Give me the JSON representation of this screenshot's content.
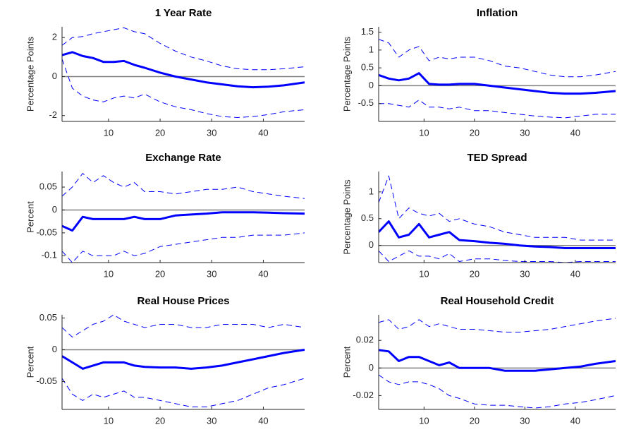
{
  "chart_data": [
    {
      "type": "line",
      "title": "1 Year Rate",
      "ylabel": "Percentage Points",
      "x": [
        1,
        3,
        5,
        7,
        9,
        11,
        13,
        15,
        17,
        20,
        23,
        26,
        29,
        32,
        35,
        38,
        41,
        44,
        48
      ],
      "xlim": [
        1,
        48
      ],
      "xticks": [
        10,
        20,
        30,
        40
      ],
      "ylim": [
        -2.3,
        2.55
      ],
      "yticks": [
        -2,
        0,
        2
      ],
      "reference_line": 0,
      "series": [
        {
          "color": "#0000ff",
          "style": "solid",
          "values": [
            1.1,
            1.25,
            1.05,
            0.95,
            0.75,
            0.75,
            0.8,
            0.6,
            0.45,
            0.2,
            0.0,
            -0.15,
            -0.3,
            -0.4,
            -0.5,
            -0.55,
            -0.52,
            -0.45,
            -0.3
          ]
        },
        {
          "color": "#0000ff",
          "style": "dashed",
          "values": [
            1.6,
            2.0,
            2.05,
            2.2,
            2.3,
            2.4,
            2.5,
            2.3,
            2.2,
            1.7,
            1.3,
            1.0,
            0.8,
            0.55,
            0.4,
            0.35,
            0.35,
            0.4,
            0.5
          ]
        },
        {
          "color": "#0000ff",
          "style": "dashed",
          "values": [
            0.9,
            -0.6,
            -1.0,
            -1.2,
            -1.3,
            -1.1,
            -1.0,
            -1.1,
            -0.9,
            -1.3,
            -1.55,
            -1.7,
            -1.9,
            -2.05,
            -2.1,
            -2.05,
            -1.95,
            -1.8,
            -1.7
          ]
        }
      ]
    },
    {
      "type": "line",
      "title": "Inflation",
      "ylabel": "Percentage Points",
      "x": [
        1,
        3,
        5,
        7,
        9,
        11,
        13,
        15,
        17,
        20,
        23,
        26,
        29,
        32,
        35,
        38,
        41,
        44,
        48
      ],
      "xlim": [
        1,
        48
      ],
      "xticks": [
        10,
        20,
        30,
        40
      ],
      "ylim": [
        -1.0,
        1.65
      ],
      "yticks": [
        -0.5,
        0,
        0.5,
        1,
        1.5
      ],
      "reference_line": 0,
      "series": [
        {
          "color": "#0000ff",
          "style": "solid",
          "values": [
            0.3,
            0.2,
            0.15,
            0.2,
            0.35,
            0.05,
            0.03,
            0.03,
            0.05,
            0.05,
            0.0,
            -0.05,
            -0.1,
            -0.15,
            -0.2,
            -0.22,
            -0.22,
            -0.2,
            -0.15
          ]
        },
        {
          "color": "#0000ff",
          "style": "dashed",
          "values": [
            1.3,
            1.2,
            0.8,
            1.0,
            1.1,
            0.7,
            0.8,
            0.75,
            0.8,
            0.8,
            0.7,
            0.55,
            0.5,
            0.4,
            0.3,
            0.25,
            0.25,
            0.3,
            0.4
          ]
        },
        {
          "color": "#0000ff",
          "style": "dashed",
          "values": [
            -0.5,
            -0.5,
            -0.55,
            -0.6,
            -0.4,
            -0.6,
            -0.6,
            -0.65,
            -0.6,
            -0.7,
            -0.7,
            -0.75,
            -0.8,
            -0.85,
            -0.88,
            -0.9,
            -0.85,
            -0.8,
            -0.8
          ]
        }
      ]
    },
    {
      "type": "line",
      "title": "Exchange Rate",
      "ylabel": "Percent",
      "x": [
        1,
        3,
        5,
        7,
        9,
        11,
        13,
        15,
        17,
        20,
        23,
        26,
        29,
        32,
        35,
        38,
        41,
        44,
        48
      ],
      "xlim": [
        1,
        48
      ],
      "xticks": [
        10,
        20,
        30,
        40
      ],
      "ylim": [
        -0.115,
        0.084
      ],
      "yticks": [
        -0.1,
        -0.05,
        0,
        0.05
      ],
      "reference_line": 0,
      "series": [
        {
          "color": "#0000ff",
          "style": "solid",
          "values": [
            -0.035,
            -0.045,
            -0.015,
            -0.02,
            -0.02,
            -0.02,
            -0.02,
            -0.015,
            -0.02,
            -0.02,
            -0.012,
            -0.01,
            -0.008,
            -0.005,
            -0.005,
            -0.005,
            -0.006,
            -0.007,
            -0.008
          ]
        },
        {
          "color": "#0000ff",
          "style": "dashed",
          "values": [
            0.03,
            0.05,
            0.08,
            0.06,
            0.075,
            0.06,
            0.05,
            0.06,
            0.04,
            0.04,
            0.035,
            0.04,
            0.045,
            0.045,
            0.05,
            0.04,
            0.035,
            0.03,
            0.025
          ]
        },
        {
          "color": "#0000ff",
          "style": "dashed",
          "values": [
            -0.09,
            -0.115,
            -0.09,
            -0.1,
            -0.1,
            -0.1,
            -0.09,
            -0.1,
            -0.095,
            -0.08,
            -0.075,
            -0.07,
            -0.065,
            -0.06,
            -0.06,
            -0.055,
            -0.055,
            -0.055,
            -0.05
          ]
        }
      ]
    },
    {
      "type": "line",
      "title": "TED Spread",
      "ylabel": "Percentage Points",
      "x": [
        1,
        3,
        5,
        7,
        9,
        11,
        13,
        15,
        17,
        20,
        23,
        26,
        29,
        32,
        35,
        38,
        41,
        44,
        48
      ],
      "xlim": [
        1,
        48
      ],
      "xticks": [
        10,
        20,
        30,
        40
      ],
      "ylim": [
        -0.32,
        1.38
      ],
      "yticks": [
        0,
        0.5,
        1
      ],
      "reference_line": 0,
      "series": [
        {
          "color": "#0000ff",
          "style": "solid",
          "values": [
            0.25,
            0.45,
            0.15,
            0.2,
            0.4,
            0.15,
            0.2,
            0.25,
            0.1,
            0.08,
            0.05,
            0.03,
            0.0,
            -0.02,
            -0.03,
            -0.05,
            -0.05,
            -0.05,
            -0.05
          ]
        },
        {
          "color": "#0000ff",
          "style": "dashed",
          "values": [
            0.8,
            1.3,
            0.5,
            0.7,
            0.6,
            0.55,
            0.6,
            0.45,
            0.5,
            0.4,
            0.35,
            0.25,
            0.2,
            0.15,
            0.15,
            0.15,
            0.1,
            0.1,
            0.1
          ]
        },
        {
          "color": "#0000ff",
          "style": "dashed",
          "values": [
            -0.1,
            -0.3,
            -0.2,
            -0.1,
            -0.2,
            -0.2,
            -0.25,
            -0.15,
            -0.3,
            -0.25,
            -0.25,
            -0.28,
            -0.3,
            -0.3,
            -0.3,
            -0.32,
            -0.3,
            -0.3,
            -0.3
          ]
        }
      ]
    },
    {
      "type": "line",
      "title": "Real House Prices",
      "ylabel": "Percent",
      "x": [
        1,
        3,
        5,
        7,
        9,
        11,
        13,
        15,
        17,
        20,
        23,
        26,
        29,
        32,
        35,
        38,
        41,
        44,
        48
      ],
      "xlim": [
        1,
        48
      ],
      "xticks": [
        10,
        20,
        30,
        40
      ],
      "ylim": [
        -0.094,
        0.055
      ],
      "yticks": [
        -0.05,
        0,
        0.05
      ],
      "reference_line": 0,
      "series": [
        {
          "color": "#0000ff",
          "style": "solid",
          "values": [
            -0.01,
            -0.02,
            -0.03,
            -0.025,
            -0.02,
            -0.02,
            -0.02,
            -0.025,
            -0.027,
            -0.028,
            -0.028,
            -0.03,
            -0.028,
            -0.025,
            -0.02,
            -0.015,
            -0.01,
            -0.005,
            0.0
          ]
        },
        {
          "color": "#0000ff",
          "style": "dashed",
          "values": [
            0.035,
            0.02,
            0.03,
            0.04,
            0.045,
            0.055,
            0.045,
            0.04,
            0.035,
            0.04,
            0.04,
            0.035,
            0.035,
            0.04,
            0.04,
            0.04,
            0.035,
            0.04,
            0.035
          ]
        },
        {
          "color": "#0000ff",
          "style": "dashed",
          "values": [
            -0.045,
            -0.07,
            -0.08,
            -0.07,
            -0.075,
            -0.07,
            -0.065,
            -0.075,
            -0.075,
            -0.08,
            -0.085,
            -0.09,
            -0.09,
            -0.085,
            -0.08,
            -0.07,
            -0.06,
            -0.055,
            -0.045
          ]
        }
      ]
    },
    {
      "type": "line",
      "title": "Real Household Credit",
      "ylabel": "Percent",
      "x": [
        1,
        3,
        5,
        7,
        9,
        11,
        13,
        15,
        17,
        20,
        23,
        26,
        29,
        32,
        35,
        38,
        41,
        44,
        48
      ],
      "xlim": [
        1,
        48
      ],
      "xticks": [
        10,
        20,
        30,
        40
      ],
      "ylim": [
        -0.03,
        0.0385
      ],
      "yticks": [
        -0.02,
        0,
        0.02
      ],
      "reference_line": 0,
      "series": [
        {
          "color": "#0000ff",
          "style": "solid",
          "values": [
            0.013,
            0.012,
            0.005,
            0.008,
            0.008,
            0.005,
            0.002,
            0.004,
            0.0,
            0.0,
            0.0,
            -0.002,
            -0.002,
            -0.002,
            -0.001,
            0.0,
            0.001,
            0.003,
            0.005
          ]
        },
        {
          "color": "#0000ff",
          "style": "dashed",
          "values": [
            0.033,
            0.035,
            0.028,
            0.03,
            0.035,
            0.03,
            0.032,
            0.03,
            0.028,
            0.028,
            0.027,
            0.026,
            0.026,
            0.027,
            0.028,
            0.03,
            0.032,
            0.034,
            0.036
          ]
        },
        {
          "color": "#0000ff",
          "style": "dashed",
          "values": [
            -0.005,
            -0.01,
            -0.012,
            -0.01,
            -0.01,
            -0.012,
            -0.015,
            -0.02,
            -0.022,
            -0.026,
            -0.027,
            -0.027,
            -0.028,
            -0.029,
            -0.028,
            -0.026,
            -0.025,
            -0.023,
            -0.02
          ]
        }
      ]
    }
  ]
}
